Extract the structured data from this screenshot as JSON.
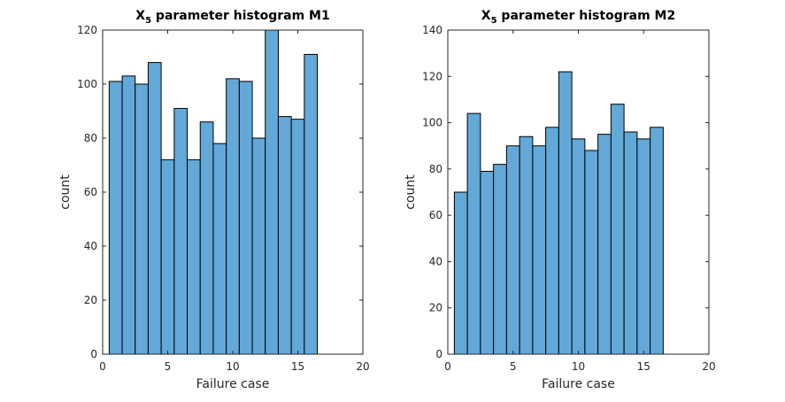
{
  "chart_data": [
    {
      "type": "bar",
      "title_main": "X",
      "title_sub": "5",
      "title_rest": " parameter histogram M1",
      "xlabel": "Failure case",
      "ylabel": "count",
      "xlim": [
        0,
        20
      ],
      "ylim": [
        0,
        120
      ],
      "xticks": [
        "0",
        "5",
        "10",
        "15",
        "20"
      ],
      "yticks": [
        "0",
        "20",
        "40",
        "60",
        "80",
        "100",
        "120"
      ],
      "bin_edges": [
        0.5,
        1.5,
        2.5,
        3.5,
        4.5,
        5.5,
        6.5,
        7.5,
        8.5,
        9.5,
        10.5,
        11.5,
        12.5,
        13.5,
        14.5,
        15.5,
        16.5
      ],
      "values": [
        101,
        103,
        100,
        108,
        72,
        91,
        72,
        86,
        78,
        102,
        101,
        80,
        121,
        88,
        87,
        111
      ],
      "grid": false,
      "color": "#62a9d8"
    },
    {
      "type": "bar",
      "title_main": "X",
      "title_sub": "5",
      "title_rest": " parameter histogram M2",
      "xlabel": "Failure case",
      "ylabel": "count",
      "xlim": [
        0,
        20
      ],
      "ylim": [
        0,
        140
      ],
      "xticks": [
        "0",
        "5",
        "10",
        "15",
        "20"
      ],
      "yticks": [
        "0",
        "20",
        "40",
        "60",
        "80",
        "100",
        "120",
        "140"
      ],
      "bin_edges": [
        0.5,
        1.5,
        2.5,
        3.5,
        4.5,
        5.5,
        6.5,
        7.5,
        8.5,
        9.5,
        10.5,
        11.5,
        12.5,
        13.5,
        14.5,
        15.5,
        16.5
      ],
      "values": [
        70,
        104,
        79,
        82,
        90,
        94,
        90,
        98,
        122,
        93,
        88,
        95,
        108,
        96,
        93,
        98
      ],
      "grid": false,
      "color": "#62a9d8"
    }
  ]
}
